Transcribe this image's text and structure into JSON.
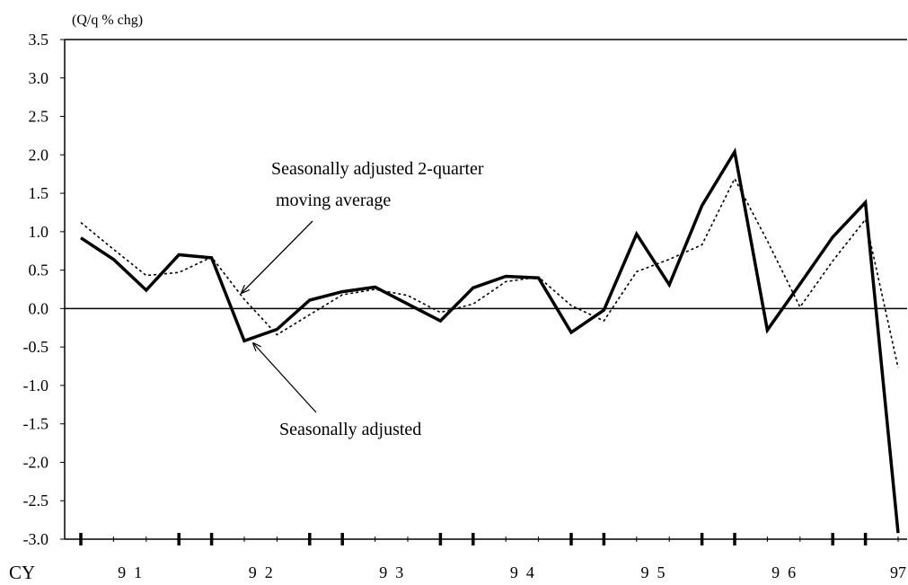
{
  "chart_data": {
    "type": "line",
    "unit_label": "(Q/q % chg)",
    "ylim": [
      -3.0,
      3.5
    ],
    "y_ticks": [
      "3.5",
      "3.0",
      "2.5",
      "2.0",
      "1.5",
      "1.0",
      "0.5",
      "0.0",
      "-0.5",
      "-1.0",
      "-1.5",
      "-2.0",
      "-2.5",
      "-3.0"
    ],
    "x_axis_prefix": "CY",
    "year_labels": [
      "9  1",
      "9  2",
      "9  3",
      "9  4",
      "9  5",
      "9  6",
      "97"
    ],
    "year_label_quarter_pos": [
      1.5,
      5.5,
      9.5,
      13.5,
      17.5,
      21.5,
      25
    ],
    "year_tick_quarters": [
      0,
      3,
      4,
      7,
      8,
      11,
      12,
      15,
      16,
      19,
      20,
      23,
      24
    ],
    "quarters_count": 26,
    "series": [
      {
        "name": "Seasonally adjusted",
        "style": "solid",
        "color": "#000000",
        "values": [
          0.92,
          0.64,
          0.24,
          0.7,
          0.66,
          -0.42,
          -0.27,
          0.11,
          0.22,
          0.28,
          0.06,
          -0.16,
          0.27,
          0.42,
          0.4,
          -0.31,
          -0.02,
          0.97,
          0.31,
          1.34,
          2.04,
          -0.28,
          0.32,
          0.93,
          1.38,
          -2.92
        ]
      },
      {
        "name": "Seasonally adjusted 2-quarter moving average",
        "style": "dotted",
        "color": "#000000",
        "values": [
          1.12,
          0.77,
          0.43,
          0.47,
          0.67,
          0.12,
          -0.34,
          -0.08,
          0.18,
          0.25,
          0.17,
          -0.05,
          0.06,
          0.35,
          0.41,
          0.04,
          -0.16,
          0.48,
          0.64,
          0.83,
          1.69,
          0.88,
          0.02,
          0.62,
          1.16,
          -0.77
        ]
      }
    ],
    "annotations": [
      {
        "text_lines": [
          "Seasonally adjusted 2-quarter",
          " moving average"
        ],
        "points_to_series": 1
      },
      {
        "text_lines": [
          "Seasonally adjusted"
        ],
        "points_to_series": 0
      }
    ]
  }
}
